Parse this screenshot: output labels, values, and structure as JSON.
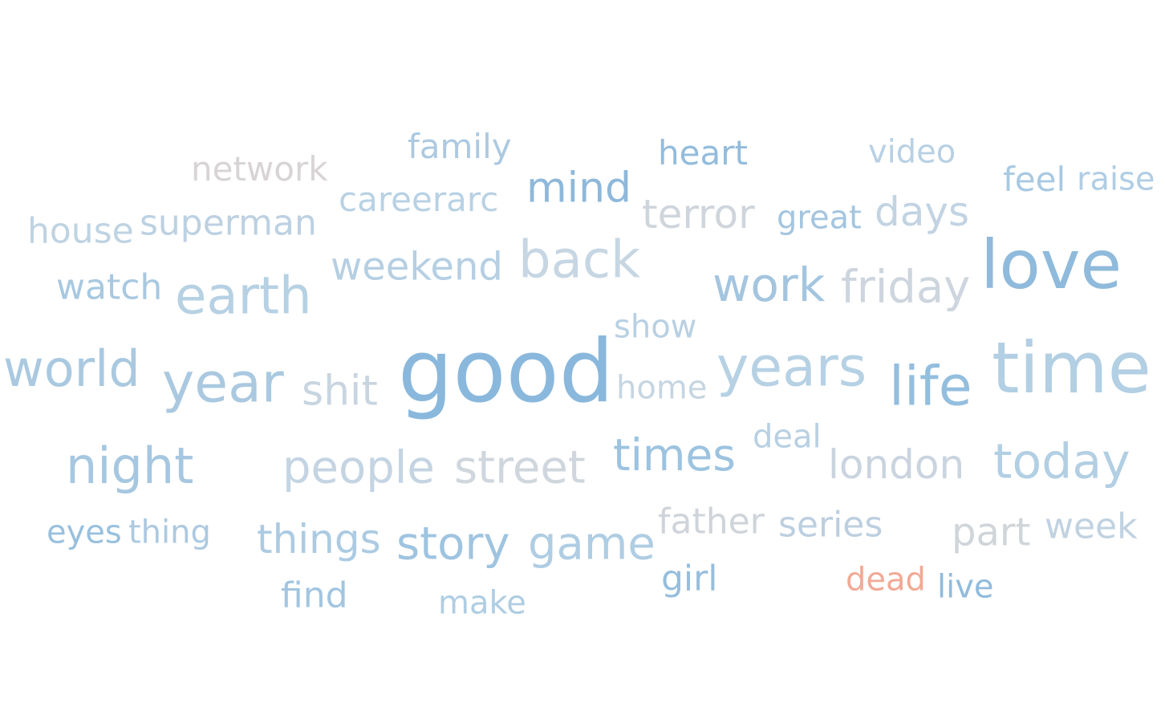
{
  "words": [
    {
      "text": "good",
      "color": "#8ab8dc"
    },
    {
      "text": "time",
      "color": "#b2cfe3"
    },
    {
      "text": "love",
      "color": "#8fbadb"
    },
    {
      "text": "years",
      "color": "#b6d1e4"
    },
    {
      "text": "life",
      "color": "#93bede"
    },
    {
      "text": "year",
      "color": "#aac9e0"
    },
    {
      "text": "world",
      "color": "#aac9e0"
    },
    {
      "text": "earth",
      "color": "#b6d1e3"
    },
    {
      "text": "back",
      "color": "#c6d6e3"
    },
    {
      "text": "work",
      "color": "#a4c5df"
    },
    {
      "text": "friday",
      "color": "#cdd5de"
    },
    {
      "text": "night",
      "color": "#a6c7e0"
    },
    {
      "text": "today",
      "color": "#b2cfe3"
    },
    {
      "text": "people",
      "color": "#c4d4e2"
    },
    {
      "text": "street",
      "color": "#cfd6dd"
    },
    {
      "text": "times",
      "color": "#9cc3e0"
    },
    {
      "text": "london",
      "color": "#cad4df"
    },
    {
      "text": "story",
      "color": "#9fc4e0"
    },
    {
      "text": "game",
      "color": "#afcde3"
    },
    {
      "text": "shit",
      "color": "#c8d5e1"
    },
    {
      "text": "mind",
      "color": "#8eb8da"
    },
    {
      "text": "terror",
      "color": "#cfd5dc"
    },
    {
      "text": "days",
      "color": "#c2d3e2"
    },
    {
      "text": "weekend",
      "color": "#b5cfe3"
    },
    {
      "text": "superman",
      "color": "#bcd1e2"
    },
    {
      "text": "house",
      "color": "#bfd3e2"
    },
    {
      "text": "watch",
      "color": "#a8c8e0"
    },
    {
      "text": "things",
      "color": "#accbe2"
    },
    {
      "text": "part",
      "color": "#d0d5da"
    },
    {
      "text": "home",
      "color": "#c5d5e2"
    },
    {
      "text": "show",
      "color": "#b8d0e3"
    },
    {
      "text": "family",
      "color": "#acc9e0"
    },
    {
      "text": "network",
      "color": "#d8d4d6"
    },
    {
      "text": "careerarc",
      "color": "#b8d1e4"
    },
    {
      "text": "heart",
      "color": "#93bcdc"
    },
    {
      "text": "video",
      "color": "#b8d0e3"
    },
    {
      "text": "feel",
      "color": "#a9c9e2"
    },
    {
      "text": "raise",
      "color": "#b0cde3"
    },
    {
      "text": "great",
      "color": "#a4c5df"
    },
    {
      "text": "deal",
      "color": "#b9d0e2"
    },
    {
      "text": "eyes",
      "color": "#98c0de"
    },
    {
      "text": "thing",
      "color": "#acc9e1"
    },
    {
      "text": "father",
      "color": "#cfd4da"
    },
    {
      "text": "series",
      "color": "#bccfe0"
    },
    {
      "text": "week",
      "color": "#c0d2e1"
    },
    {
      "text": "find",
      "color": "#a2c5e0"
    },
    {
      "text": "make",
      "color": "#afcde3"
    },
    {
      "text": "girl",
      "color": "#96bedd"
    },
    {
      "text": "dead",
      "color": "#f2a996"
    },
    {
      "text": "live",
      "color": "#91bbdc"
    }
  ]
}
